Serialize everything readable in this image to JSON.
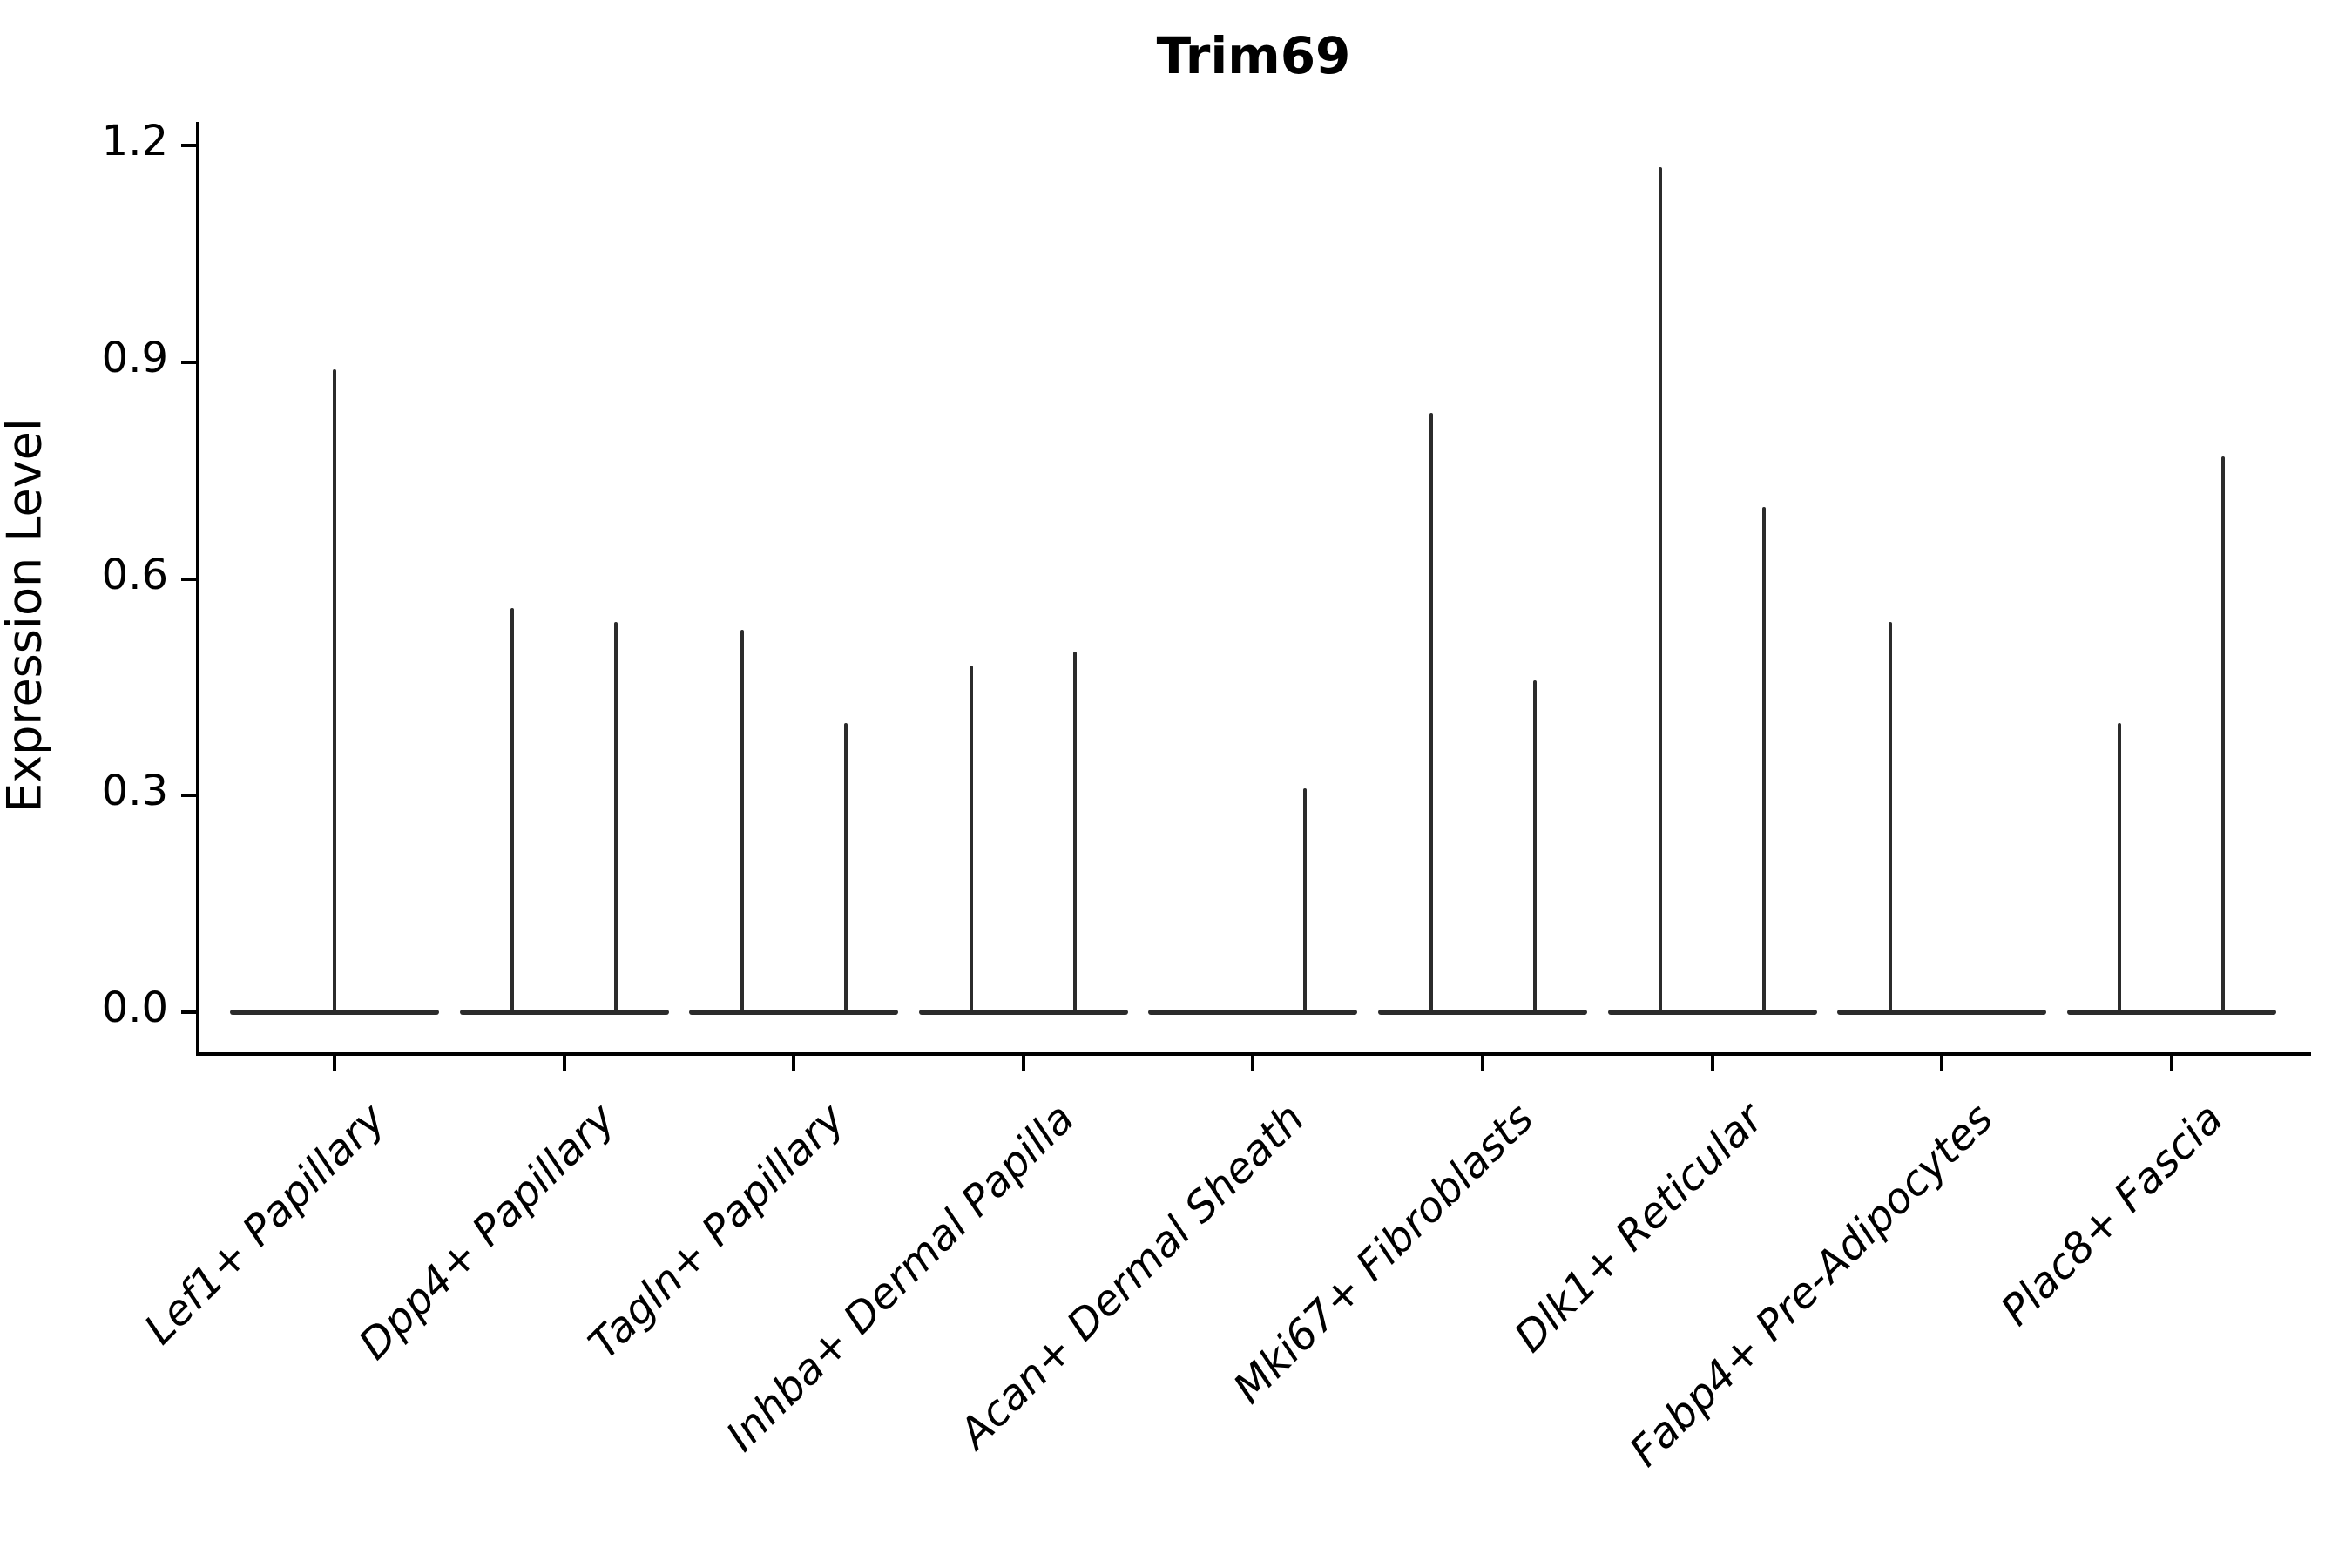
{
  "title": "Trim69",
  "y_axis": {
    "label": "Expression Level",
    "tick_labels": [
      "0.0",
      "0.3",
      "0.6",
      "0.9",
      "1.2"
    ],
    "tick_values": [
      0.0,
      0.3,
      0.6,
      0.9,
      1.2
    ]
  },
  "chart_data": {
    "type": "violin",
    "title": "Trim69",
    "xlabel": "",
    "ylabel": "Expression Level",
    "ylim": [
      0,
      1.2
    ],
    "yticks": [
      0.0,
      0.3,
      0.6,
      0.9,
      1.2
    ],
    "grid": false,
    "legend": "none",
    "categories": [
      "Lef1+ Papillary",
      "Dpp4+ Papillary",
      "Tagln+ Papillary",
      "Inhba+ Dermal Papilla",
      "Acan+ Dermal Sheath",
      "Mki67+ Fibroblasts",
      "Dlk1+ Reticular",
      "Fabp4+ Pre-Adipocytes",
      "Plac8+ Fascia"
    ],
    "description": "Thin spike-shaped violins; baseline mass at 0 with narrow density spike up to the max expression value. Most categories contain two violins (split pair); a null max means the violin is flat at 0 with no spike.",
    "groups": [
      {
        "category": "Lef1+ Papillary",
        "violins": [
          {
            "position": "center",
            "max_expression": 0.89
          }
        ]
      },
      {
        "category": "Dpp4+ Papillary",
        "violins": [
          {
            "position": "left",
            "max_expression": 0.56
          },
          {
            "position": "right",
            "max_expression": 0.54
          }
        ]
      },
      {
        "category": "Tagln+ Papillary",
        "violins": [
          {
            "position": "left",
            "max_expression": 0.53
          },
          {
            "position": "right",
            "max_expression": 0.4
          }
        ]
      },
      {
        "category": "Inhba+ Dermal Papilla",
        "violins": [
          {
            "position": "left",
            "max_expression": 0.48
          },
          {
            "position": "right",
            "max_expression": 0.5
          }
        ]
      },
      {
        "category": "Acan+ Dermal Sheath",
        "violins": [
          {
            "position": "left",
            "max_expression": null
          },
          {
            "position": "right",
            "max_expression": 0.31
          }
        ]
      },
      {
        "category": "Mki67+ Fibroblasts",
        "violins": [
          {
            "position": "left",
            "max_expression": 0.83
          },
          {
            "position": "right",
            "max_expression": 0.46
          }
        ]
      },
      {
        "category": "Dlk1+ Reticular",
        "violins": [
          {
            "position": "left",
            "max_expression": 1.17
          },
          {
            "position": "right",
            "max_expression": 0.7
          }
        ]
      },
      {
        "category": "Fabp4+ Pre-Adipocytes",
        "violins": [
          {
            "position": "left",
            "max_expression": 0.54
          },
          {
            "position": "right",
            "max_expression": null
          }
        ]
      },
      {
        "category": "Plac8+ Fascia",
        "violins": [
          {
            "position": "left",
            "max_expression": 0.4
          },
          {
            "position": "right",
            "max_expression": 0.77
          }
        ]
      }
    ]
  }
}
